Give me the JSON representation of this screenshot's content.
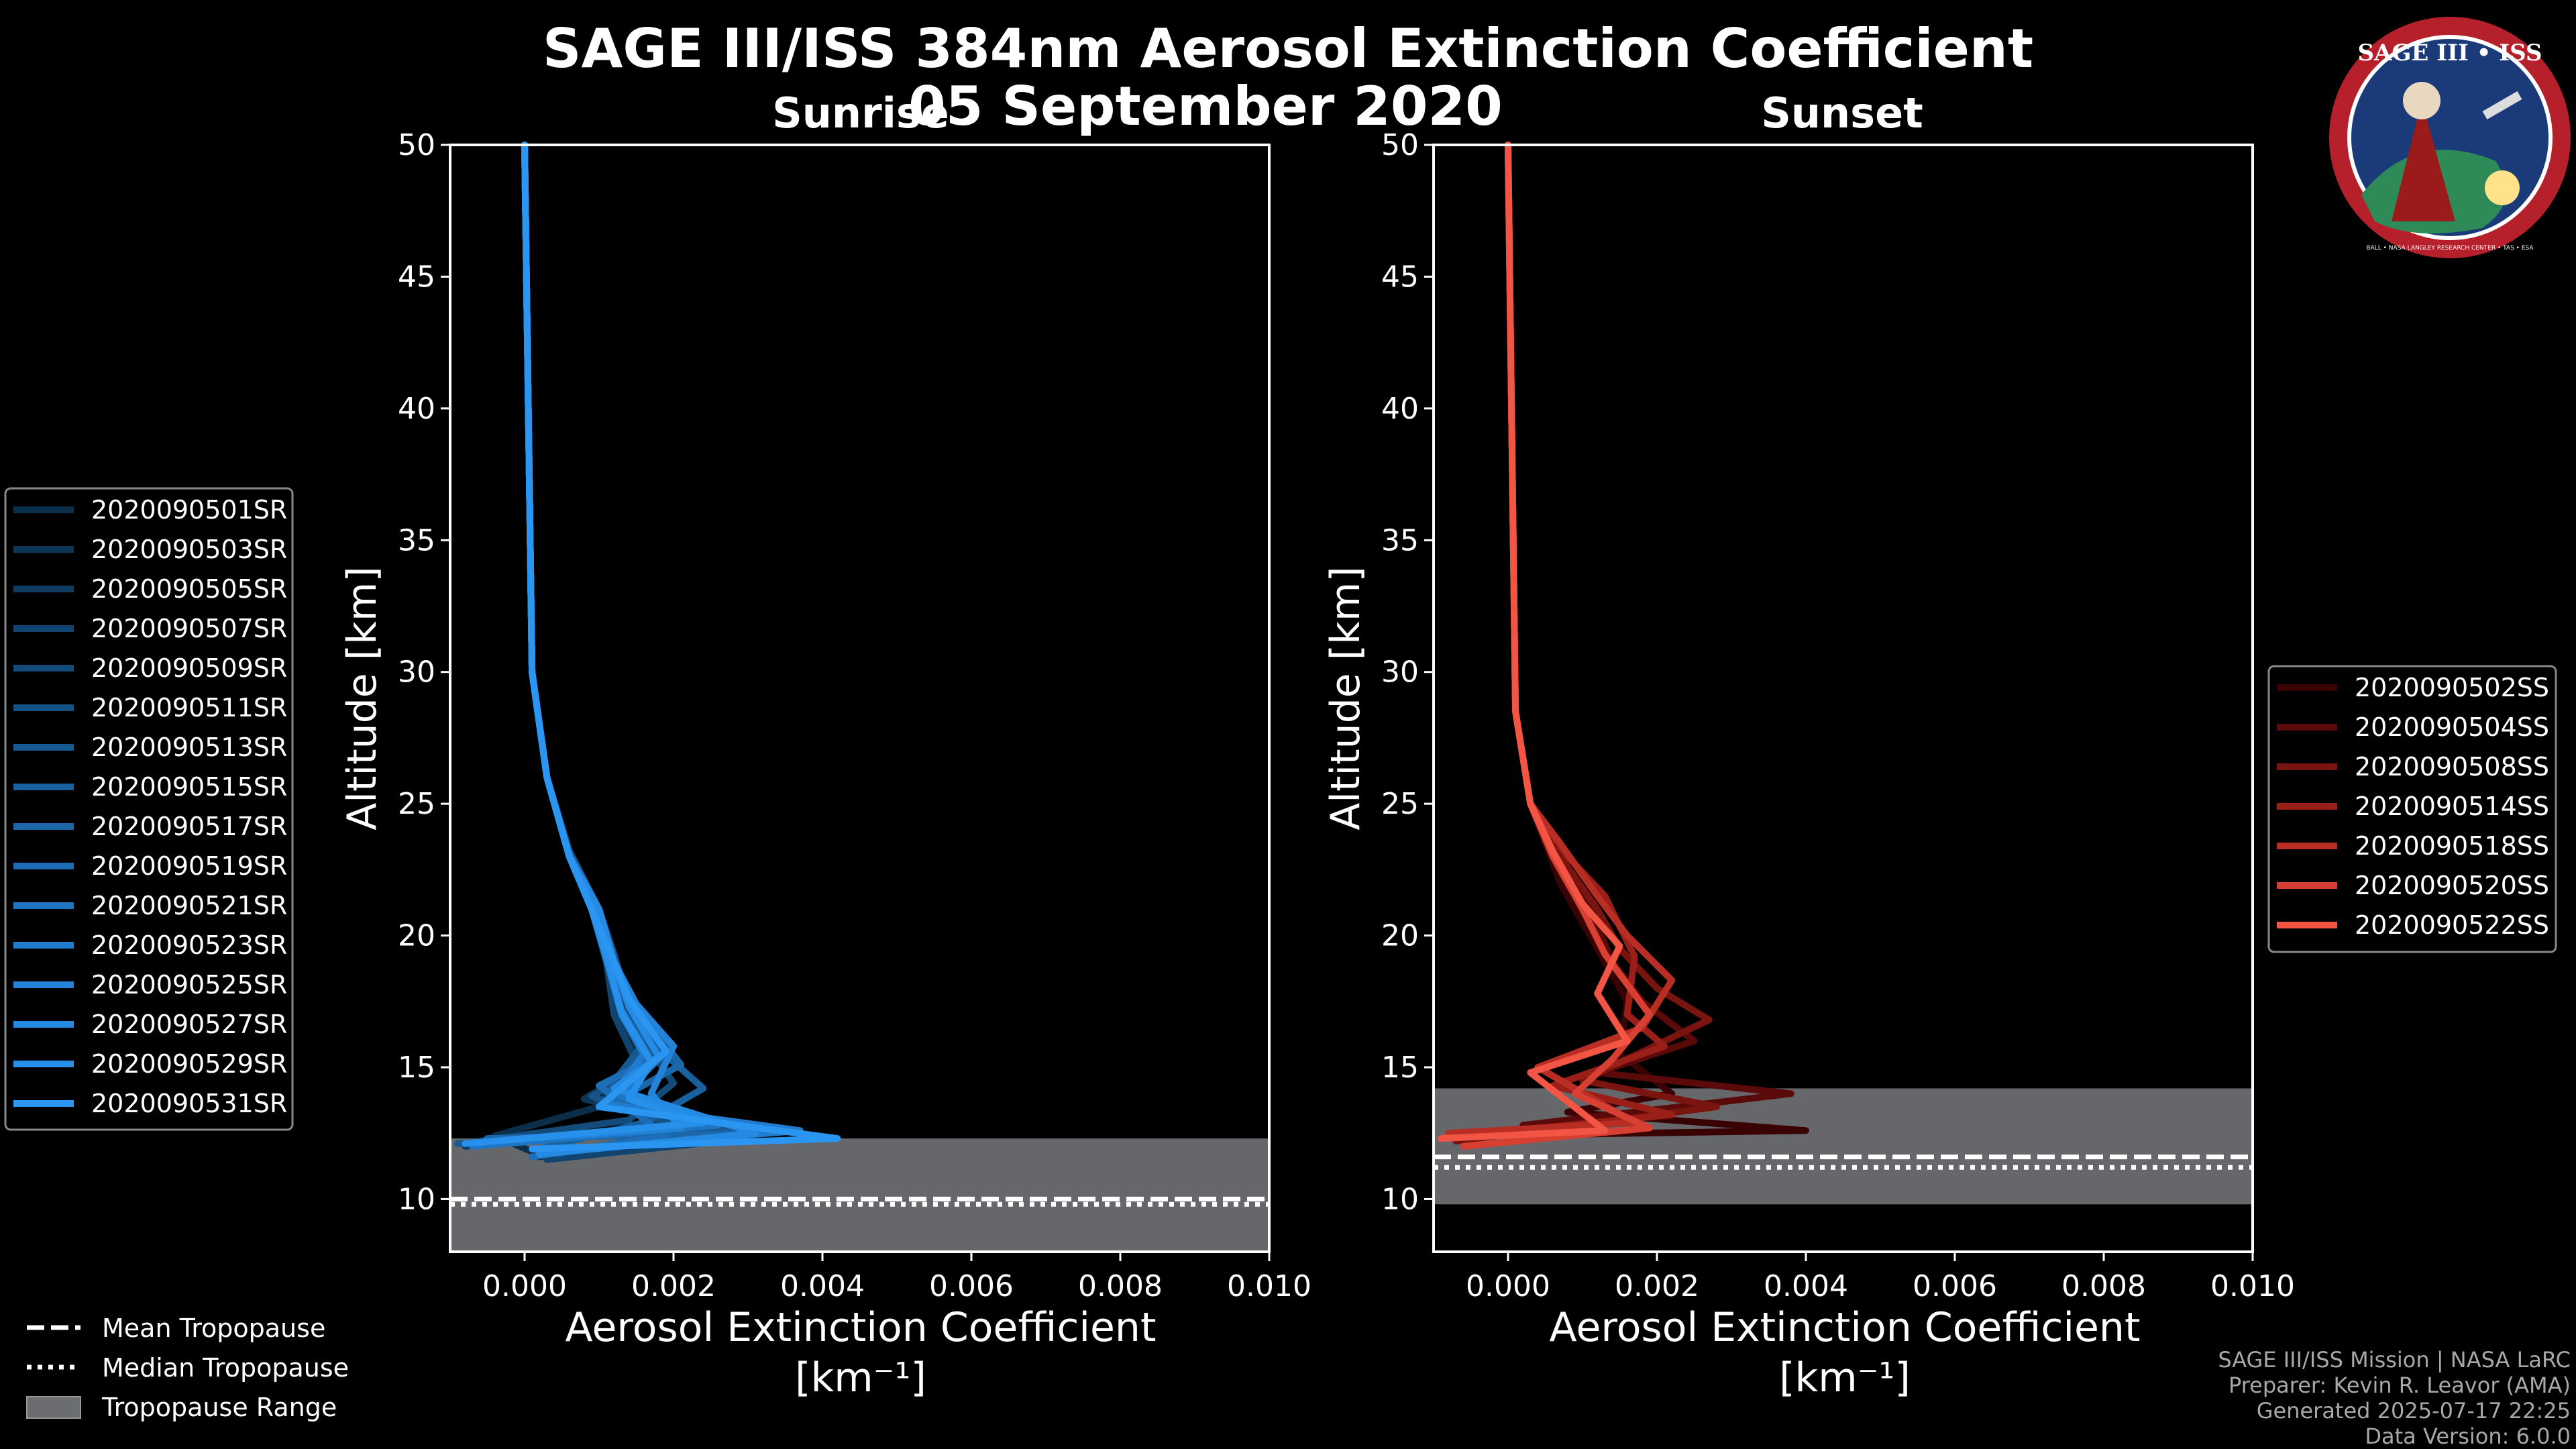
{
  "title": "SAGE III/ISS 384nm Aerosol Extinction Coefficient",
  "date": "05 September 2020",
  "logo": {
    "text_top": "SAGE III • ISS",
    "text_bottom": "BALL • NASA LANGLEY RESEARCH CENTER • TAS • ESA"
  },
  "credits": [
    "SAGE III/ISS Mission | NASA LaRC",
    "Preparer: Kevin R. Leavor (AMA)",
    "Generated 2025-07-17 22:25",
    "Data Version: 6.0.0"
  ],
  "tropo_legend": {
    "mean": "Mean Tropopause",
    "median": "Median Tropopause",
    "range": "Tropopause Range"
  },
  "chart_data": [
    {
      "type": "line",
      "title": "Sunrise",
      "xlabel": "Aerosol Extinction Coefficient",
      "xunit": "[km⁻¹]",
      "ylabel": "Altitude [km]",
      "xlim": [
        -0.001,
        0.01
      ],
      "ylim": [
        8,
        50
      ],
      "xticks": [
        0.0,
        0.002,
        0.004,
        0.006,
        0.008,
        0.01
      ],
      "xtick_labels": [
        "0.000",
        "0.002",
        "0.004",
        "0.006",
        "0.008",
        "0.010"
      ],
      "yticks": [
        10,
        15,
        20,
        25,
        30,
        35,
        40,
        45,
        50
      ],
      "ytick_labels": [
        "10",
        "15",
        "20",
        "25",
        "30",
        "35",
        "40",
        "45",
        "50"
      ],
      "tropopause": {
        "mean": 10.0,
        "median": 9.8,
        "range": [
          8.0,
          12.3
        ]
      },
      "legend_position": "left",
      "series": [
        {
          "name": "2020090501SR",
          "color": "#0b2f4a",
          "x": [
            0.0001,
            -0.0004,
            0.001,
            0.0016,
            0.0012,
            0.0011,
            0.0009,
            0.0006,
            0.0003,
            0.0001,
            0.0
          ],
          "y": [
            11.8,
            12.4,
            13.5,
            15.0,
            17.0,
            19.0,
            21.0,
            23.0,
            26.0,
            30.0,
            50.0
          ]
        },
        {
          "name": "2020090503SR",
          "color": "#0d3656",
          "x": [
            0.0002,
            0.0025,
            0.0008,
            0.0018,
            0.0013,
            0.0012,
            0.0009,
            0.0006,
            0.0003,
            0.0001,
            0.0
          ],
          "y": [
            11.6,
            12.5,
            13.8,
            15.5,
            17.5,
            19.2,
            21.0,
            23.0,
            26.0,
            30.0,
            50.0
          ]
        },
        {
          "name": "2020090505SR",
          "color": "#0f3d62",
          "x": [
            -0.0008,
            0.0018,
            0.0012,
            0.002,
            0.0014,
            0.0012,
            0.001,
            0.0006,
            0.0003,
            0.0001,
            0.0
          ],
          "y": [
            12.0,
            12.8,
            14.0,
            15.8,
            17.3,
            19.0,
            21.0,
            23.2,
            26.0,
            30.0,
            50.0
          ]
        },
        {
          "name": "2020090507SR",
          "color": "#11446e",
          "x": [
            0.0003,
            0.003,
            0.001,
            0.0015,
            0.0012,
            0.0011,
            0.0009,
            0.0006,
            0.0003,
            0.0001,
            0.0
          ],
          "y": [
            11.5,
            12.3,
            13.6,
            15.2,
            17.0,
            19.0,
            21.0,
            23.0,
            26.0,
            30.0,
            50.0
          ]
        },
        {
          "name": "2020090509SR",
          "color": "#134b7a",
          "x": [
            -0.0006,
            0.0014,
            0.002,
            0.0017,
            0.0013,
            0.0012,
            0.0009,
            0.0006,
            0.0003,
            0.0001,
            0.0
          ],
          "y": [
            12.2,
            13.0,
            14.4,
            15.6,
            17.2,
            19.0,
            21.0,
            23.0,
            26.0,
            30.0,
            50.0
          ]
        },
        {
          "name": "2020090511SR",
          "color": "#155286",
          "x": [
            0.0004,
            0.0022,
            0.0009,
            0.0019,
            0.0014,
            0.0012,
            0.001,
            0.0006,
            0.0003,
            0.0001,
            0.0
          ],
          "y": [
            11.7,
            12.6,
            13.9,
            15.4,
            17.4,
            19.3,
            21.0,
            23.0,
            26.0,
            30.0,
            50.0
          ]
        },
        {
          "name": "2020090513SR",
          "color": "#175992",
          "x": [
            -0.0009,
            0.0028,
            0.0011,
            0.0016,
            0.0013,
            0.0011,
            0.0009,
            0.0006,
            0.0003,
            0.0001,
            0.0
          ],
          "y": [
            12.1,
            12.7,
            14.1,
            15.9,
            17.1,
            19.0,
            21.0,
            23.0,
            26.0,
            30.0,
            50.0
          ]
        },
        {
          "name": "2020090515SR",
          "color": "#19609e",
          "x": [
            0.0002,
            0.0016,
            0.0024,
            0.0018,
            0.0014,
            0.0012,
            0.001,
            0.0006,
            0.0003,
            0.0001,
            0.0
          ],
          "y": [
            11.9,
            12.9,
            14.2,
            15.7,
            17.6,
            19.1,
            21.0,
            23.2,
            26.0,
            30.0,
            50.0
          ]
        },
        {
          "name": "2020090517SR",
          "color": "#1b67aa",
          "x": [
            -0.0005,
            0.0033,
            0.0012,
            0.0021,
            0.0015,
            0.0012,
            0.0009,
            0.0006,
            0.0003,
            0.0001,
            0.0
          ],
          "y": [
            12.3,
            12.5,
            13.7,
            15.1,
            17.3,
            19.0,
            21.0,
            23.0,
            26.0,
            30.0,
            50.0
          ]
        },
        {
          "name": "2020090519SR",
          "color": "#1d6eb6",
          "x": [
            0.0001,
            0.0019,
            0.001,
            0.0017,
            0.0013,
            0.0011,
            0.0009,
            0.0006,
            0.0003,
            0.0001,
            0.0
          ],
          "y": [
            11.6,
            12.4,
            14.3,
            15.3,
            17.2,
            19.2,
            21.0,
            23.0,
            26.0,
            30.0,
            50.0
          ]
        },
        {
          "name": "2020090521SR",
          "color": "#1f75c2",
          "x": [
            -0.0007,
            0.0026,
            0.0013,
            0.0019,
            0.0014,
            0.0012,
            0.001,
            0.0006,
            0.0003,
            0.0001,
            0.0
          ],
          "y": [
            12.0,
            12.8,
            13.9,
            15.6,
            17.5,
            19.0,
            21.0,
            23.0,
            26.0,
            30.0,
            50.0
          ]
        },
        {
          "name": "2020090523SR",
          "color": "#217cce",
          "x": [
            0.0003,
            0.0037,
            0.0011,
            0.0016,
            0.0013,
            0.0011,
            0.0009,
            0.0006,
            0.0003,
            0.0001,
            0.0
          ],
          "y": [
            11.8,
            12.6,
            13.6,
            15.5,
            17.0,
            19.1,
            21.0,
            23.0,
            26.0,
            30.0,
            50.0
          ]
        },
        {
          "name": "2020090525SR",
          "color": "#2383d8",
          "x": [
            -0.0004,
            0.0021,
            0.0017,
            0.002,
            0.0015,
            0.0012,
            0.0009,
            0.0006,
            0.0003,
            0.0001,
            0.0
          ],
          "y": [
            12.2,
            12.7,
            14.0,
            15.8,
            17.4,
            19.0,
            21.0,
            23.0,
            26.0,
            30.0,
            50.0
          ]
        },
        {
          "name": "2020090527SR",
          "color": "#258ae2",
          "x": [
            0.0002,
            0.0031,
            0.0012,
            0.0018,
            0.0014,
            0.0012,
            0.001,
            0.0006,
            0.0003,
            0.0001,
            0.0
          ],
          "y": [
            11.7,
            12.5,
            14.2,
            15.4,
            17.3,
            19.0,
            21.0,
            23.0,
            26.0,
            30.0,
            50.0
          ]
        },
        {
          "name": "2020090529SR",
          "color": "#2790ea",
          "x": [
            -0.0008,
            0.0024,
            0.0014,
            0.0017,
            0.0013,
            0.0011,
            0.0009,
            0.0006,
            0.0003,
            0.0001,
            0.0
          ],
          "y": [
            12.1,
            12.9,
            13.8,
            15.2,
            17.1,
            19.2,
            21.0,
            23.0,
            26.0,
            30.0,
            50.0
          ]
        },
        {
          "name": "2020090531SR",
          "color": "#2a96f2",
          "x": [
            0.0001,
            0.0042,
            0.001,
            0.0019,
            0.0014,
            0.0012,
            0.0009,
            0.0006,
            0.0003,
            0.0001,
            0.0
          ],
          "y": [
            11.9,
            12.3,
            13.5,
            15.6,
            17.6,
            19.0,
            21.0,
            23.0,
            26.0,
            30.0,
            50.0
          ]
        }
      ]
    },
    {
      "type": "line",
      "title": "Sunset",
      "xlabel": "Aerosol Extinction Coefficient",
      "xunit": "[km⁻¹]",
      "ylabel": "Altitude [km]",
      "xlim": [
        -0.001,
        0.01
      ],
      "ylim": [
        8,
        50
      ],
      "xticks": [
        0.0,
        0.002,
        0.004,
        0.006,
        0.008,
        0.01
      ],
      "xtick_labels": [
        "0.000",
        "0.002",
        "0.004",
        "0.006",
        "0.008",
        "0.010"
      ],
      "yticks": [
        10,
        15,
        20,
        25,
        30,
        35,
        40,
        45,
        50
      ],
      "ytick_labels": [
        "10",
        "15",
        "20",
        "25",
        "30",
        "35",
        "40",
        "45",
        "50"
      ],
      "tropopause": {
        "mean": 11.6,
        "median": 11.2,
        "range": [
          9.8,
          14.2
        ]
      },
      "legend_position": "right",
      "series": [
        {
          "name": "2020090502SS",
          "color": "#3a0303",
          "x": [
            -0.0005,
            0.004,
            0.0008,
            0.0022,
            0.0015,
            0.0016,
            0.0012,
            0.0007,
            0.0003,
            0.0001,
            0.0
          ],
          "y": [
            12.4,
            12.6,
            13.3,
            14.0,
            15.5,
            17.5,
            19.5,
            22.0,
            25.0,
            28.5,
            50.0
          ]
        },
        {
          "name": "2020090504SS",
          "color": "#5a0a08",
          "x": [
            0.0002,
            0.0038,
            0.0012,
            0.0025,
            0.0018,
            0.0014,
            0.0011,
            0.0007,
            0.0003,
            0.0001,
            0.0
          ],
          "y": [
            12.8,
            14.0,
            14.8,
            16.0,
            17.5,
            19.0,
            21.0,
            22.5,
            25.0,
            28.5,
            50.0
          ]
        },
        {
          "name": "2020090508SS",
          "color": "#7a140f",
          "x": [
            -0.0007,
            0.0028,
            0.001,
            0.0027,
            0.002,
            0.0015,
            0.0012,
            0.0007,
            0.0003,
            0.0001,
            0.0
          ],
          "y": [
            12.2,
            13.5,
            14.5,
            16.8,
            18.0,
            19.5,
            21.0,
            23.0,
            25.0,
            28.5,
            50.0
          ]
        },
        {
          "name": "2020090514SS",
          "color": "#991f18",
          "x": [
            0.0001,
            0.0022,
            0.0006,
            0.0021,
            0.0016,
            0.0017,
            0.0013,
            0.0008,
            0.0003,
            0.0001,
            0.0
          ],
          "y": [
            12.6,
            13.2,
            14.3,
            15.8,
            17.0,
            19.2,
            21.5,
            23.0,
            25.0,
            28.5,
            50.0
          ]
        },
        {
          "name": "2020090518SS",
          "color": "#b82e24",
          "x": [
            -0.0008,
            0.0017,
            0.0004,
            0.0018,
            0.0022,
            0.0016,
            0.0012,
            0.0007,
            0.0003,
            0.0001,
            0.0
          ],
          "y": [
            12.5,
            12.9,
            15.0,
            16.5,
            18.3,
            20.0,
            21.5,
            23.5,
            25.0,
            28.5,
            50.0
          ]
        },
        {
          "name": "2020090520SS",
          "color": "#d63f32",
          "x": [
            -0.0006,
            0.0019,
            0.0009,
            0.0014,
            0.0019,
            0.0013,
            0.001,
            0.0006,
            0.0003,
            0.0001,
            0.0
          ],
          "y": [
            12.0,
            12.7,
            14.0,
            15.3,
            17.0,
            19.3,
            21.0,
            23.0,
            25.0,
            28.5,
            50.0
          ]
        },
        {
          "name": "2020090522SS",
          "color": "#f25544",
          "x": [
            -0.0009,
            0.0013,
            0.0003,
            0.0016,
            0.0012,
            0.0015,
            0.001,
            0.0006,
            0.0003,
            0.0001,
            0.0
          ],
          "y": [
            12.3,
            12.6,
            14.8,
            16.0,
            17.8,
            19.6,
            21.2,
            23.2,
            25.0,
            28.5,
            50.0
          ]
        }
      ]
    }
  ]
}
